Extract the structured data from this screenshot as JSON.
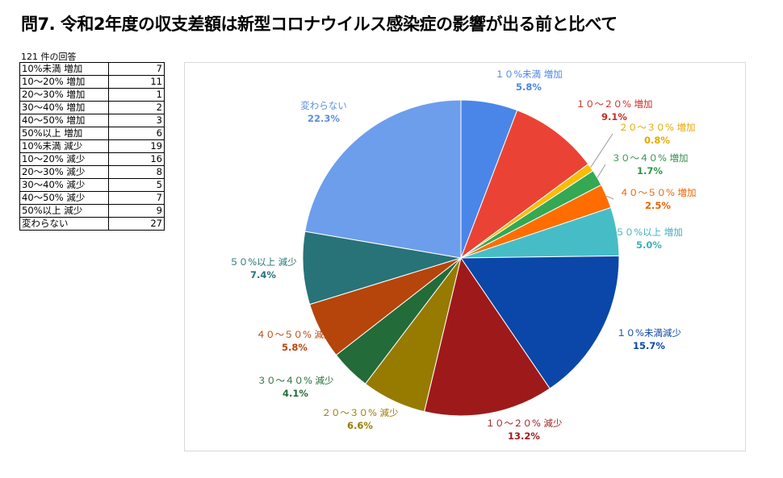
{
  "title": "問7. 令和2年度の収支差額は新型コロナウイルス感染症の影響が出る前と比べて",
  "response_count": "121 件の回答",
  "table": [
    {
      "label": "10%未満 増加",
      "value": "7"
    },
    {
      "label": "10～20% 増加",
      "value": "11"
    },
    {
      "label": "20～30% 増加",
      "value": "1"
    },
    {
      "label": "30～40% 増加",
      "value": "2"
    },
    {
      "label": "40～50% 増加",
      "value": "3"
    },
    {
      "label": "50%以上 増加",
      "value": "6"
    },
    {
      "label": "10%未満 減少",
      "value": "19"
    },
    {
      "label": "10～20% 減少",
      "value": "16"
    },
    {
      "label": "20～30% 減少",
      "value": "8"
    },
    {
      "label": "30～40% 減少",
      "value": "5"
    },
    {
      "label": "40～50% 減少",
      "value": "7"
    },
    {
      "label": "50%以上 減少",
      "value": "9"
    },
    {
      "label": "変わらない",
      "value": "27"
    }
  ],
  "chart_data": {
    "type": "pie",
    "categories": [
      "１０%未満 増加",
      "１０～２０% 増加",
      "２０～３０% 増加",
      "３０～４０% 増加",
      "４０～５０% 増加",
      "５０%以上 増加",
      "１０%未満減少",
      "１０～２０% 減少",
      "２０～３０% 減少",
      "３０～４０% 減少",
      "４０～５０% 減少",
      "５０%以上 減少",
      "変わらない"
    ],
    "values": [
      7,
      11,
      1,
      2,
      3,
      6,
      19,
      16,
      8,
      5,
      7,
      9,
      27
    ],
    "percent_labels": [
      "5.8%",
      "9.1%",
      "0.8%",
      "1.7%",
      "2.5%",
      "5.0%",
      "15.7%",
      "13.2%",
      "6.6%",
      "4.1%",
      "5.8%",
      "7.4%",
      "22.3%"
    ],
    "colors": [
      "#4a86e8",
      "#ea4335",
      "#fbbc04",
      "#34a853",
      "#ff6d01",
      "#46bdc6",
      "#0b47a8",
      "#9e1a1a",
      "#977a00",
      "#236b38",
      "#b5450b",
      "#277378",
      "#6d9eeb"
    ],
    "label_colors": [
      "#4a86e8",
      "#cc2a1f",
      "#e3a800",
      "#2f9048",
      "#ea6100",
      "#3fb0b8",
      "#0b47a8",
      "#9e1a1a",
      "#977a00",
      "#236b38",
      "#b5450b",
      "#277378",
      "#5b8fe0"
    ],
    "start_angle": "12 o'clock, clockwise",
    "legend": "none"
  }
}
